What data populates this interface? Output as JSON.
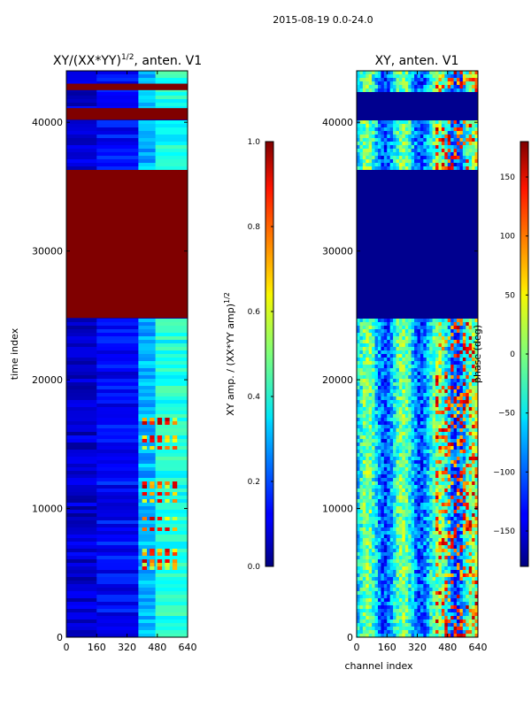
{
  "suptitle": "2015-08-19 0.0-24.0",
  "chart_data": [
    {
      "type": "heatmap",
      "title_main": "XY/(XX*YY)",
      "title_exp": "1/2",
      "title_suffix": ", anten. V1",
      "xlabel": "",
      "ylabel": "time index",
      "xlim": [
        0,
        640
      ],
      "ylim": [
        0,
        44000
      ],
      "x_ticks": [
        0,
        160,
        320,
        480,
        640
      ],
      "x_tick_labels": [
        "0",
        "160",
        "320",
        "480",
        "640"
      ],
      "y_ticks": [
        0,
        10000,
        20000,
        30000,
        40000
      ],
      "y_tick_labels": [
        "0",
        "10000",
        "20000",
        "30000",
        "40000"
      ],
      "saturated_bands": [
        [
          24800,
          36300
        ],
        [
          40200,
          41100
        ],
        [
          42500,
          43000
        ]
      ],
      "colorbar": {
        "label_main": "XY amp. / (XX*YY amp)",
        "label_exp": "1/2",
        "range": [
          0.0,
          1.0
        ],
        "ticks": [
          0.0,
          0.2,
          0.4,
          0.6,
          0.8,
          1.0
        ],
        "tick_labels": [
          "0.0",
          "0.2",
          "0.4",
          "0.6",
          "0.8",
          "1.0"
        ]
      }
    },
    {
      "type": "heatmap",
      "title_main": "XY, anten. V1",
      "xlabel": "channel index",
      "ylabel": "",
      "xlim": [
        0,
        640
      ],
      "ylim": [
        0,
        44000
      ],
      "x_ticks": [
        0,
        160,
        320,
        480,
        640
      ],
      "x_tick_labels": [
        "0",
        "160",
        "320",
        "480",
        "640"
      ],
      "y_ticks": [
        0,
        10000,
        20000,
        30000,
        40000
      ],
      "y_tick_labels": [
        "0",
        "10000",
        "20000",
        "30000",
        "40000"
      ],
      "flat_bands": [
        [
          24800,
          36300
        ],
        [
          40200,
          42400
        ]
      ],
      "colorbar": {
        "label": "phase (deg)",
        "range": [
          -180,
          180
        ],
        "ticks": [
          -150,
          -100,
          -50,
          0,
          50,
          100,
          150
        ],
        "tick_labels": [
          "−150",
          "−100",
          "−50",
          "0",
          "50",
          "100",
          "150"
        ]
      }
    }
  ]
}
